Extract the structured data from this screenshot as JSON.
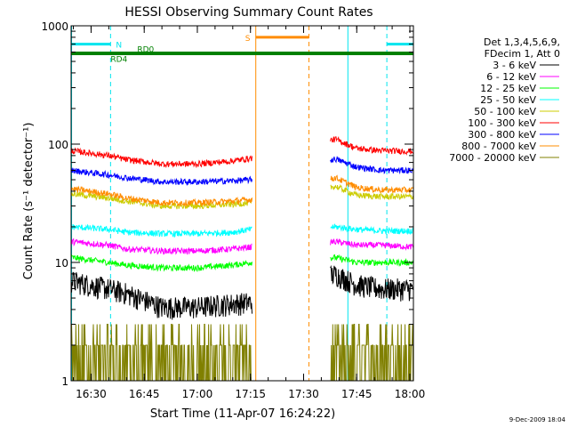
{
  "chart_data": {
    "type": "line",
    "title": "HESSI Observing Summary Count Rates",
    "xlabel": "Start Time (11-Apr-07 16:24:22)",
    "ylabel": "Count Rate (s⁻¹ detector⁻¹)",
    "y_scale": "log",
    "ylim": [
      1,
      1000
    ],
    "xlim": [
      "16:24:22",
      "18:01:00"
    ],
    "x_ticks": [
      "16:30",
      "16:45",
      "17:00",
      "17:15",
      "17:30",
      "17:45",
      "18:00"
    ],
    "y_ticks": [
      "1",
      "10",
      "100",
      "1000"
    ],
    "grid": false,
    "legend_position": "right",
    "legend_header": [
      "Det 1,3,4,5,6,9,",
      "FDecim 1, Att 0"
    ],
    "footer_date": "9-Dec-2009 18:04",
    "gaps": [
      [
        "17:15:30",
        "17:37:30"
      ]
    ],
    "vertical_markers": [
      {
        "time": "16:24:30",
        "color": "#00e5ee",
        "style": "solid"
      },
      {
        "time": "16:35:30",
        "color": "#00e5ee",
        "style": "dashed"
      },
      {
        "time": "17:16:30",
        "color": "#ff8c00",
        "style": "solid"
      },
      {
        "time": "17:31:30",
        "color": "#ff8c00",
        "style": "dashed"
      },
      {
        "time": "17:42:30",
        "color": "#00e5ee",
        "style": "solid"
      },
      {
        "time": "17:53:30",
        "color": "#00e5ee",
        "style": "dashed"
      }
    ],
    "flags": [
      {
        "label": "N",
        "color": "#00e5ee",
        "y": 700,
        "segments": [
          [
            "16:24:30",
            "16:35:30"
          ],
          [
            "17:53:30",
            "18:01:00"
          ]
        ]
      },
      {
        "label": "S",
        "color": "#ff8c00",
        "y": 800,
        "segments": [
          [
            "17:16:30",
            "17:31:30"
          ]
        ]
      },
      {
        "label": "RD0",
        "color": "#008000",
        "y": 580,
        "segments": [
          [
            "16:24:30",
            "18:01:00"
          ]
        ]
      },
      {
        "label": "RD4",
        "color": "#008000",
        "y": 590,
        "segments": [
          [
            "16:24:30",
            "18:01:00"
          ]
        ]
      }
    ],
    "x": [
      "16:24:22",
      "16:35:00",
      "16:40:00",
      "16:50:00",
      "17:00:00",
      "17:10:00",
      "17:15:00",
      "17:39:00",
      "17:45:00",
      "17:52:00",
      "18:01:00"
    ],
    "series": [
      {
        "name": "3 - 6 keV",
        "color": "#000000",
        "values": [
          7,
          6,
          5.5,
          4.2,
          4.2,
          4.5,
          4.6,
          8,
          6.5,
          6,
          6
        ]
      },
      {
        "name": "6 - 12 keV",
        "color": "#ff00ff",
        "values": [
          15,
          14,
          13,
          12.5,
          12.5,
          13,
          13.5,
          15,
          14,
          14,
          13.5
        ]
      },
      {
        "name": "12 - 25 keV",
        "color": "#00ff00",
        "values": [
          11,
          10,
          9.5,
          9,
          9,
          9.5,
          10,
          11,
          10,
          10,
          10
        ]
      },
      {
        "name": "25 - 50 keV",
        "color": "#00ffff",
        "values": [
          20,
          19,
          18,
          17.5,
          17.5,
          18,
          19,
          20,
          19,
          18.5,
          18.5
        ]
      },
      {
        "name": "50 - 100 keV",
        "color": "#cccc00",
        "values": [
          38,
          35,
          33,
          30,
          30,
          31,
          32,
          44,
          37,
          36,
          36
        ]
      },
      {
        "name": "100 - 300 keV",
        "color": "#ff0000",
        "values": [
          88,
          80,
          74,
          68,
          68,
          72,
          76,
          110,
          92,
          88,
          87
        ]
      },
      {
        "name": "300 - 800 keV",
        "color": "#0000ff",
        "values": [
          60,
          55,
          52,
          48,
          48,
          49,
          50,
          75,
          64,
          60,
          60
        ]
      },
      {
        "name": "800 - 7000 keV",
        "color": "#ff8c00",
        "values": [
          42,
          38,
          35,
          32,
          32,
          33,
          34,
          52,
          43,
          41,
          41
        ]
      },
      {
        "name": "7000 - 20000 keV",
        "color": "#808000",
        "values": [
          2,
          2,
          2,
          2,
          2,
          2,
          2,
          2,
          2,
          2,
          2
        ]
      }
    ]
  }
}
